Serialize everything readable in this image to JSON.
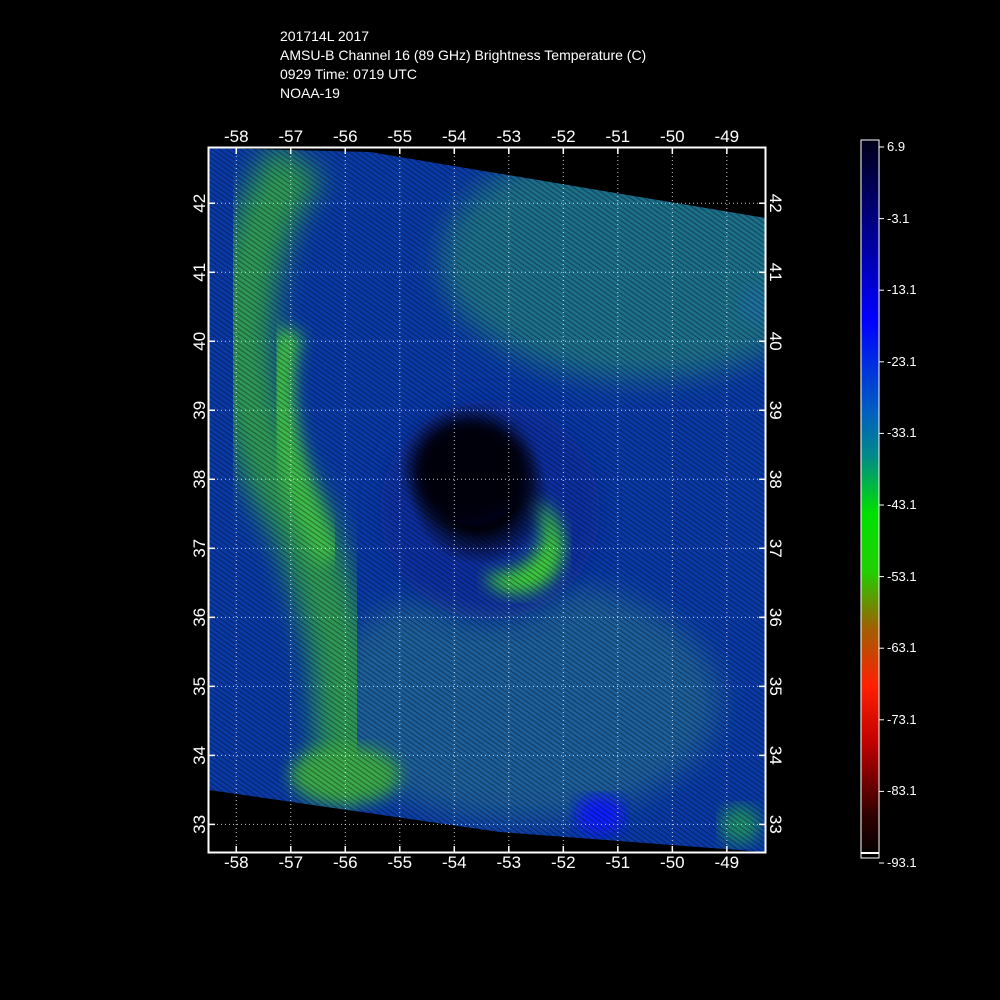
{
  "header": {
    "line1": "201714L 2017",
    "line2": "AMSU-B Channel 16 (89 GHz) Brightness Temperature (C)",
    "line3": "0929 Time: 0719 UTC",
    "line4": "NOAA-19"
  },
  "map": {
    "lon_range": [
      -58.5,
      -48.3
    ],
    "lat_range": [
      32.6,
      42.8
    ],
    "lon_ticks": [
      "-58",
      "-57",
      "-56",
      "-55",
      "-54",
      "-53",
      "-52",
      "-51",
      "-50",
      "-49"
    ],
    "lat_ticks": [
      "33",
      "34",
      "35",
      "36",
      "37",
      "38",
      "39",
      "40",
      "41",
      "42"
    ],
    "storm_center": {
      "lon": -53.3,
      "lat": 37.9
    },
    "grid": true
  },
  "colorbar": {
    "labels": [
      "6.9",
      "-3.1",
      "-13.1",
      "-23.1",
      "-33.1",
      "-43.1",
      "-53.1",
      "-63.1",
      "-73.1",
      "-83.1",
      "-93.1"
    ],
    "colors": [
      "#000010",
      "#000080",
      "#0000ff",
      "#0055cc",
      "#008888",
      "#00dd00",
      "#00ff00",
      "#888800",
      "#cc4400",
      "#ff0000",
      "#880000",
      "#200000"
    ]
  }
}
